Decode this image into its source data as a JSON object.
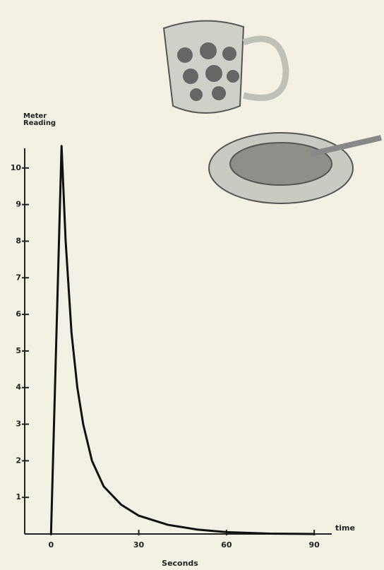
{
  "chart_data": {
    "type": "line",
    "y_label": "Meter Reading",
    "x_label": "time",
    "x_unit_label": "Seconds",
    "x": [
      0,
      3.6,
      5,
      7,
      9,
      11,
      14,
      18,
      24,
      30,
      40,
      50,
      60,
      75,
      90
    ],
    "series": [
      {
        "color": "#111111",
        "values": [
          0,
          10.6,
          8,
          5.5,
          4,
          3,
          2,
          1.3,
          0.8,
          0.5,
          0.25,
          0.12,
          0.05,
          0.01,
          0
        ]
      }
    ],
    "xlim": [
      -9,
      96
    ],
    "xticks": [
      0,
      30,
      60,
      90
    ],
    "ylim": [
      0,
      11
    ],
    "yticks": [
      1,
      2,
      3,
      4,
      5,
      6,
      7,
      8,
      9,
      10
    ]
  }
}
